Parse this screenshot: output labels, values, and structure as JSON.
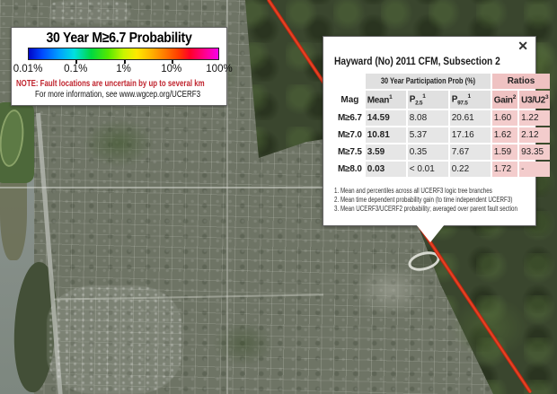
{
  "legend": {
    "title": "30 Year M≥6.7 Probability",
    "scale_labels": [
      "0.01%",
      "0.1%",
      "1%",
      "10%",
      "100%"
    ],
    "note": "NOTE: Fault locations are uncertain by up to several km",
    "info_line": "For more information, see www.wgcep.org/UCERF3",
    "colors": {
      "note_text": "#c0242e",
      "colorbar_stops": [
        "#0005c8",
        "#0048ff",
        "#00a0ff",
        "#00e0e0",
        "#00d840",
        "#55e800",
        "#c8f500",
        "#ffe800",
        "#ffb000",
        "#ff7800",
        "#ff3c00",
        "#ff0028",
        "#ff0090",
        "#f800e8"
      ]
    }
  },
  "popup": {
    "close_icon": "✕",
    "title": "Hayward (No) 2011 CFM, Subsection 2",
    "table": {
      "group_headers": [
        "30 Year Participation Prob (%)",
        "Ratios"
      ],
      "col_headers": [
        {
          "base": "Mag"
        },
        {
          "base": "Mean",
          "sup": "1"
        },
        {
          "base": "P",
          "sub": "2.5",
          "sup": "1"
        },
        {
          "base": "P",
          "sub": "97.5",
          "sup": "1"
        },
        {
          "base": "Gain",
          "sup": "2"
        },
        {
          "base": "U3/U2",
          "sup": "3"
        }
      ],
      "rows": [
        {
          "mag": "M≥6.7",
          "mean": "14.59",
          "p2_5": "8.08",
          "p97_5": "20.61",
          "gain": "1.60",
          "u3u2": "1.22"
        },
        {
          "mag": "M≥7.0",
          "mean": "10.81",
          "p2_5": "5.37",
          "p97_5": "17.16",
          "gain": "1.62",
          "u3u2": "2.12"
        },
        {
          "mag": "M≥7.5",
          "mean": "3.59",
          "p2_5": "0.35",
          "p97_5": "7.67",
          "gain": "1.59",
          "u3u2": "93.35"
        },
        {
          "mag": "M≥8.0",
          "mean": "0.03",
          "p2_5": "< 0.01",
          "p97_5": "0.22",
          "gain": "1.72",
          "u3u2": "-"
        }
      ],
      "colors": {
        "prob_header_bg": "#e0e0e0",
        "prob_cell_bg": "#e6e6e6",
        "ratio_header_bg": "#efc2c2",
        "ratio_cell_bg": "#f3cccc"
      }
    },
    "footnotes": [
      "1. Mean and percentiles across all UCERF3 logic tree branches",
      "2. Mean time dependent probability gain (to time independent UCERF3)",
      "3. Mean UCERF3/UCERF2 probability; averaged over parent fault section"
    ]
  },
  "map": {
    "type": "satellite",
    "fault_trace_color": "#e02a12"
  }
}
